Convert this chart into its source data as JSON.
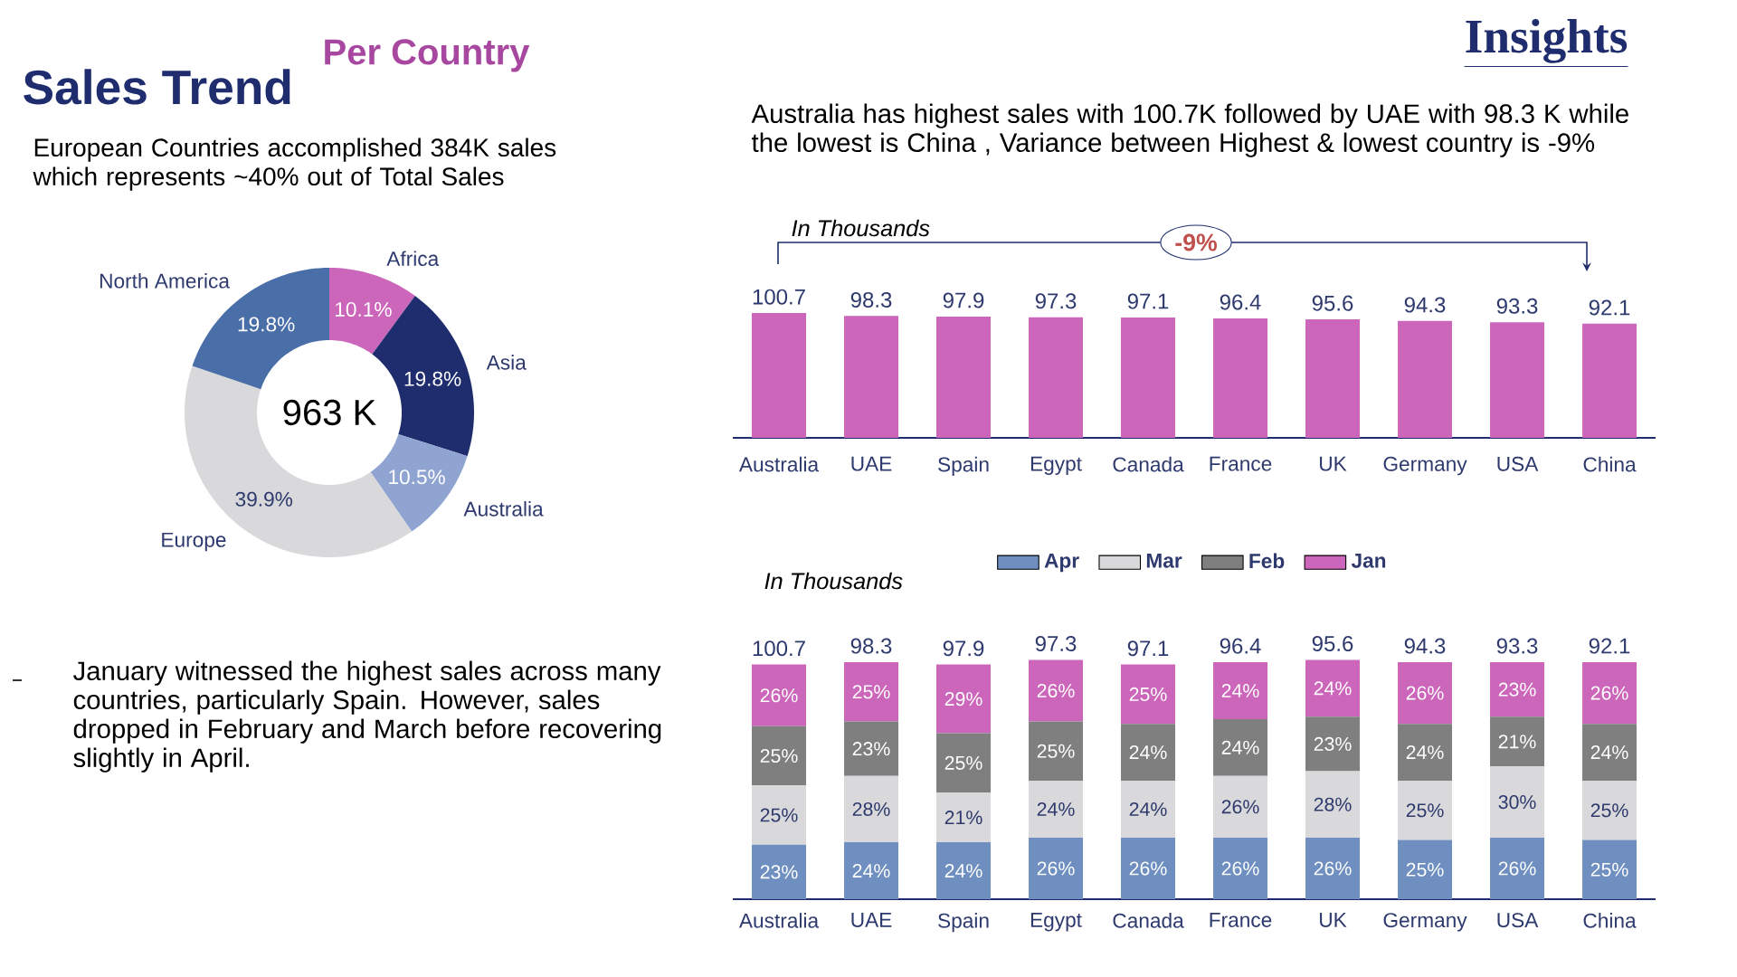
{
  "chart_data": [
    {
      "type": "donut",
      "title": "Sales Trend",
      "subtitle": "Per Country",
      "annotations": [
        "European Countries accomplished 384K sales which represents ~40% out of Total Sales",
        "963 K"
      ],
      "categories": [
        "Africa",
        "Asia",
        "Australia",
        "Europe",
        "North America"
      ],
      "values": [
        10.1,
        19.8,
        10.5,
        39.9,
        19.8
      ],
      "value_labels": [
        "10.1%",
        "19.8%",
        "10.5%",
        "39.9%",
        "19.8%"
      ],
      "colors": [
        "#cc66bb",
        "#1f2d6e",
        "#8fa4d0",
        "#d9d9db",
        "#4a6ea8"
      ]
    },
    {
      "type": "bar",
      "title": "Insights",
      "annotations": [
        "Australia has highest sales with 100.7K followed by UAE with 98.3 K while the lowest is China , Variance between Highest & lowest country is -9%",
        "In Thousands",
        "-9%"
      ],
      "categories": [
        "Australia",
        "UAE",
        "Spain",
        "Egypt",
        "Canada",
        "France",
        "UK",
        "Germany",
        "USA",
        "China"
      ],
      "values": [
        100.7,
        98.3,
        97.9,
        97.3,
        97.1,
        96.4,
        95.6,
        94.3,
        93.3,
        92.1
      ],
      "color": "#cc66bb",
      "value_labels": [
        "100.7",
        "98.3",
        "97.9",
        "97.3",
        "97.1",
        "96.4",
        "95.6",
        "94.3",
        "93.3",
        "92.1"
      ]
    },
    {
      "type": "bar",
      "stacked": true,
      "legend": "top",
      "annotations": [
        "In Thousands",
        "100.7",
        "98.3",
        "97.9",
        "97.3",
        "97.1",
        "96.4",
        "95.6",
        "94.3",
        "93.3",
        "92.1"
      ],
      "categories": [
        "Australia",
        "UAE",
        "Spain",
        "Egypt",
        "Canada",
        "France",
        "UK",
        "Germany",
        "USA",
        "China"
      ],
      "series": [
        {
          "name": "Apr",
          "color": "#6f8fc0",
          "values": [
            23,
            24,
            24,
            26,
            26,
            26,
            26,
            25,
            26,
            25
          ],
          "value_labels": [
            "23%",
            "24%",
            "24%",
            "26%",
            "26%",
            "26%",
            "26%",
            "25%",
            "26%",
            "25%"
          ]
        },
        {
          "name": "Mar",
          "color": "#d9d9db",
          "values": [
            25,
            28,
            21,
            24,
            24,
            26,
            28,
            25,
            30,
            25
          ],
          "value_labels": [
            "25%",
            "28%",
            "21%",
            "24%",
            "24%",
            "26%",
            "28%",
            "25%",
            "30%",
            "25%"
          ]
        },
        {
          "name": "Feb",
          "color": "#7f7f7f",
          "values": [
            25,
            23,
            25,
            25,
            24,
            24,
            23,
            24,
            21,
            24
          ],
          "value_labels": [
            "25%",
            "23%",
            "25%",
            "25%",
            "24%",
            "24%",
            "23%",
            "24%",
            "21%",
            "24%"
          ]
        },
        {
          "name": "Jan",
          "color": "#cc66bb",
          "values": [
            26,
            25,
            29,
            26,
            25,
            24,
            24,
            26,
            23,
            26
          ],
          "value_labels": [
            "26%",
            "25%",
            "29%",
            "26%",
            "25%",
            "24%",
            "24%",
            "26%",
            "23%",
            "26%"
          ]
        }
      ]
    },
    {
      "type": "other",
      "annotations": [
        "January witnessed the highest sales across many countries, particularly Spain. However, sales dropped in February and March before recovering slightly in April."
      ]
    }
  ]
}
